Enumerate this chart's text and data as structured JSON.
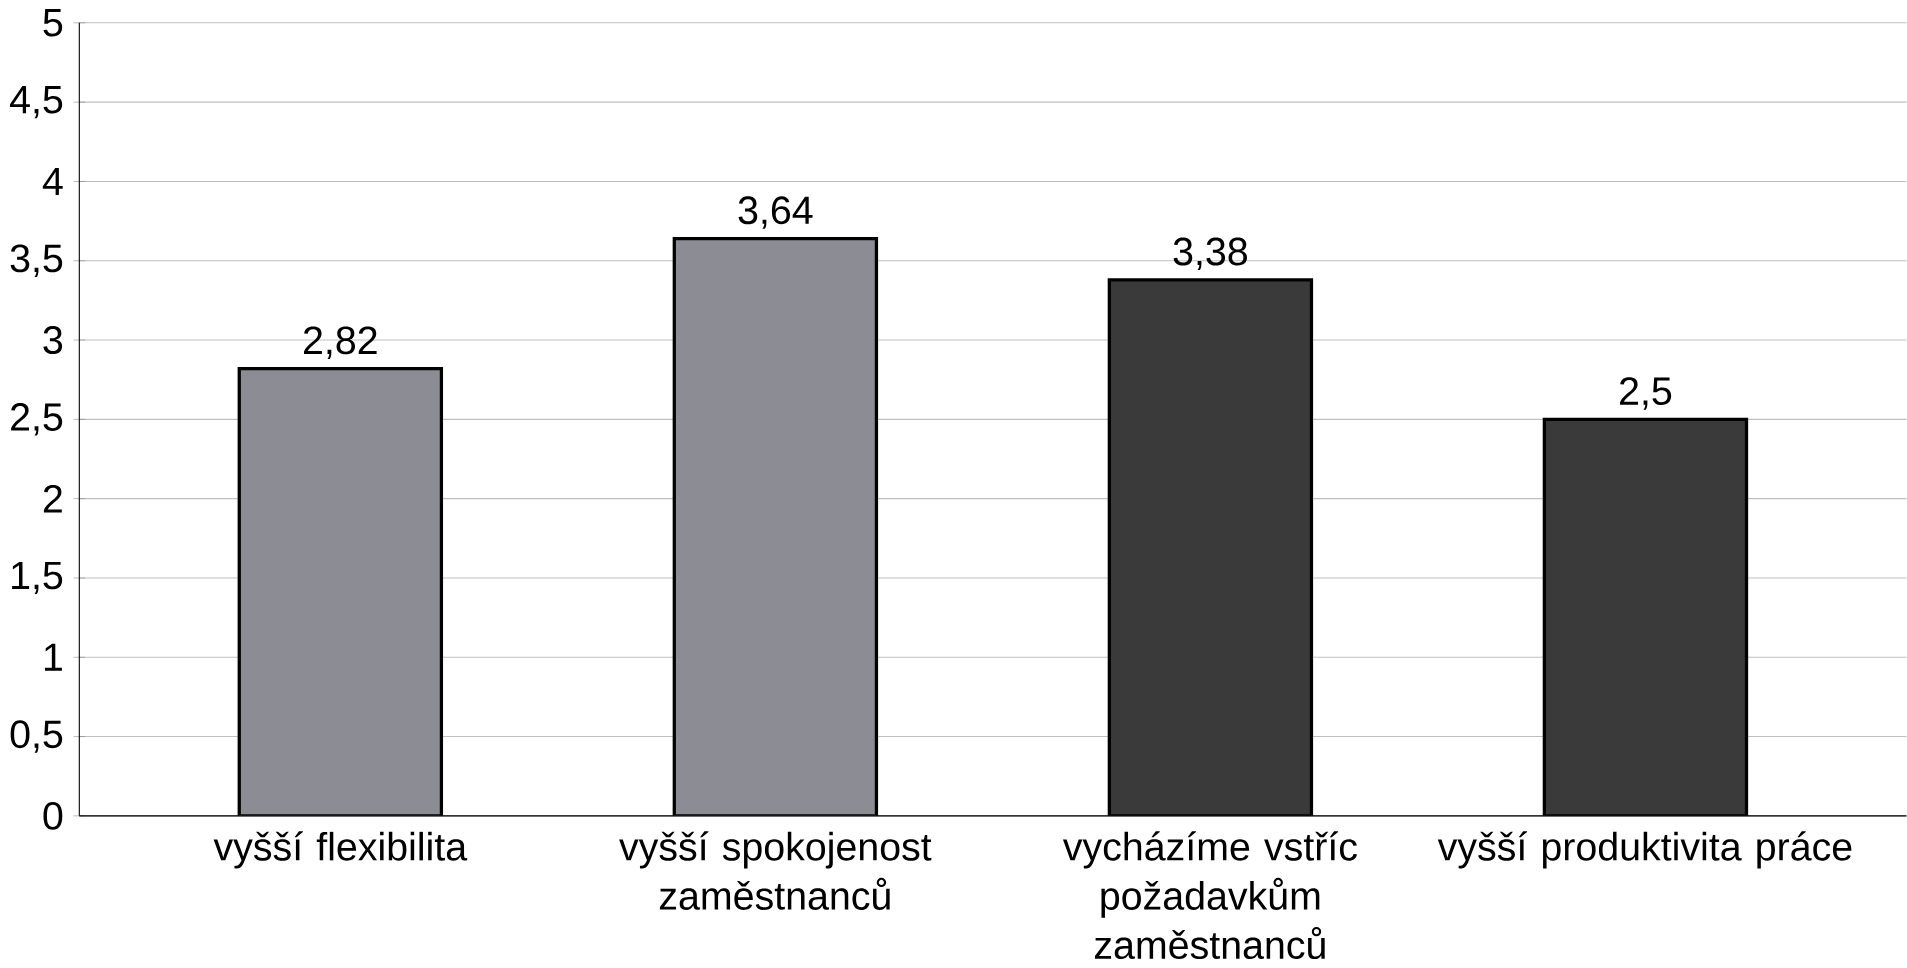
{
  "chart_data": {
    "type": "bar",
    "categories": [
      "vyšší flexibilita",
      "vyšší spokojenost zaměstnanců",
      "vycházíme vstříc požadavkům zaměstnanců",
      "vyšší produktivita práce"
    ],
    "values": [
      2.82,
      3.64,
      3.38,
      2.5
    ],
    "value_labels": [
      "2,82",
      "3,64",
      "3,38",
      "2,5"
    ],
    "colors": [
      "#8c8c94",
      "#8c8c94",
      "#3a3a3a",
      "#3a3a3a"
    ],
    "ylim": [
      0,
      5
    ],
    "yticks": [
      0,
      {
        "value": 0.5,
        "label": "0,5"
      },
      1,
      {
        "value": 1.5,
        "label": "1,5"
      },
      2,
      {
        "value": 2.5,
        "label": "2,5"
      },
      3,
      {
        "value": 3.5,
        "label": "3,5"
      },
      4,
      {
        "value": 4.5,
        "label": "4,5"
      },
      5
    ],
    "grid": "y"
  }
}
